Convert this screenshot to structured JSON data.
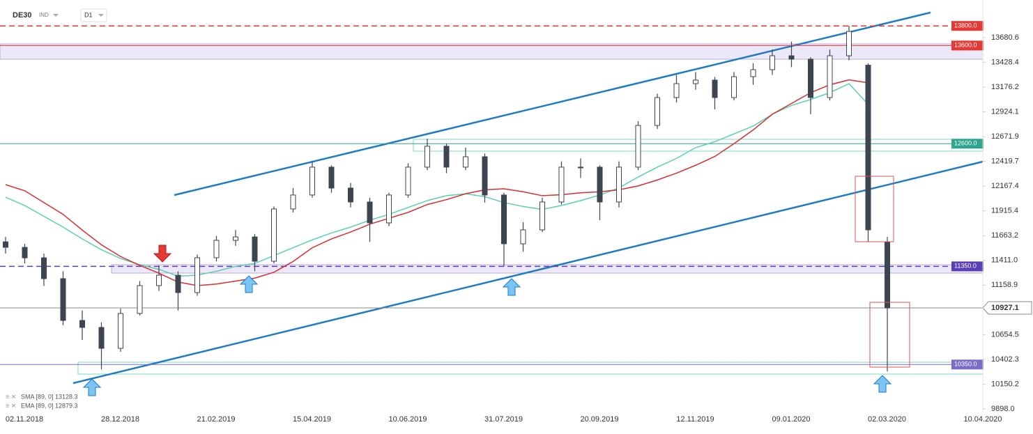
{
  "chart_data": {
    "type": "candlestick",
    "symbol": "DE30",
    "market": "IND",
    "interval": "D1",
    "legend": [
      "SMA [89, 0] 13128.3",
      "EMA [89, 0] 12879.3"
    ],
    "xticks": [
      "02.11.2018",
      "28.12.2018",
      "21.02.2019",
      "15.04.2019",
      "10.06.2019",
      "31.07.2019",
      "20.09.2019",
      "12.11.2019",
      "09.01.2020",
      "02.03.2020",
      "10.04.2020"
    ],
    "ylim": [
      9862,
      14064
    ],
    "yticks": [
      13680.6,
      13428.4,
      13176.2,
      12924.1,
      12671.9,
      12419.7,
      12167.4,
      11915.4,
      11663.2,
      {
        "value": 11411.0,
        "label": "11411.0"
      },
      11158.9,
      10654.5,
      10402.3,
      10150.2,
      {
        "value": 9898.0,
        "label": "9898.0"
      }
    ],
    "open": [
      11600,
      11544,
      11437,
      11225,
      10799,
      10728,
      10515,
      10870,
      11154,
      11260,
      11083,
      11438,
      11615,
      11650,
      11402,
      11935,
      12077,
      12361,
      12148,
      12006,
      11793,
      12077,
      12361,
      12574,
      12361,
      12467,
      12077,
      11580,
      11722,
      12006,
      12361,
      12361,
      12006,
      12361,
      12786,
      13070,
      13212,
      13248,
      13070,
      13283,
      13354,
      13496,
      13461,
      13070,
      13496,
      13400,
      11600
    ],
    "high": [
      11650,
      11580,
      11480,
      11300,
      10900,
      10780,
      10920,
      11200,
      11360,
      11300,
      11470,
      11660,
      11720,
      11680,
      11960,
      12150,
      12420,
      12380,
      12200,
      12050,
      12100,
      12400,
      12650,
      12600,
      12560,
      12500,
      12100,
      11800,
      12050,
      12420,
      12450,
      12380,
      12420,
      12830,
      13110,
      13300,
      13330,
      13280,
      13330,
      13420,
      13560,
      13640,
      13480,
      13560,
      13800,
      13420,
      11650
    ],
    "low": [
      11480,
      11380,
      11150,
      10750,
      10600,
      10300,
      10480,
      10850,
      11100,
      10900,
      11050,
      11400,
      11560,
      11300,
      11380,
      11900,
      12050,
      12100,
      11950,
      11600,
      11760,
      12050,
      12330,
      12300,
      12330,
      12000,
      11350,
      11500,
      11700,
      11980,
      12250,
      11820,
      11950,
      12330,
      12750,
      13020,
      13150,
      12950,
      13040,
      13200,
      13300,
      13380,
      12900,
      13040,
      13450,
      11600,
      10280
    ],
    "close": [
      11544,
      11437,
      11225,
      10799,
      10728,
      10515,
      10870,
      11154,
      11260,
      11083,
      11438,
      11615,
      11650,
      11402,
      11935,
      12077,
      12361,
      12148,
      12006,
      11793,
      12077,
      12361,
      12574,
      12361,
      12467,
      12077,
      11580,
      11722,
      12006,
      12361,
      12361,
      12006,
      12361,
      12786,
      13070,
      13212,
      13248,
      13070,
      13283,
      13354,
      13496,
      13461,
      13070,
      13496,
      13744,
      11722,
      10927
    ],
    "series": [
      {
        "name": "SMA",
        "color": "#5ccfae",
        "values": [
          12055,
          11970,
          11860,
          11750,
          11630,
          11520,
          11430,
          11367,
          11320,
          11250,
          11260,
          11300,
          11350,
          11380,
          11460,
          11540,
          11620,
          11690,
          11750,
          11820,
          11880,
          11950,
          12020,
          12070,
          12090,
          12060,
          12000,
          11960,
          11930,
          11970,
          12020,
          12077,
          12150,
          12260,
          12361,
          12450,
          12560,
          12620,
          12700,
          12780,
          12900,
          12990,
          13050,
          13120,
          13212,
          13000,
          null
        ]
      },
      {
        "name": "EMA",
        "color": "#d32f2f",
        "values": [
          12183,
          12120,
          12000,
          11880,
          11720,
          11570,
          11450,
          11360,
          11280,
          11190,
          11154,
          11170,
          11200,
          11230,
          11290,
          11400,
          11540,
          11630,
          11700,
          11780,
          11840,
          11900,
          11980,
          12030,
          12090,
          12130,
          12140,
          12110,
          12070,
          12080,
          12100,
          12110,
          12130,
          12170,
          12230,
          12300,
          12380,
          12470,
          12600,
          12740,
          12900,
          13010,
          13120,
          13200,
          13250,
          13220,
          null
        ]
      }
    ],
    "levels": [
      {
        "value": 13800,
        "label": "13800.0",
        "color": "#e53935",
        "dashed": true
      },
      {
        "value": 13600,
        "label": "13600.0",
        "color": "#e53935",
        "dashed": false
      },
      {
        "value": 12600,
        "label": "12600.0",
        "color": "#2ca58d",
        "dashed": false
      },
      {
        "value": 11350,
        "label": "11350.0",
        "color": "#5b3fb8",
        "dashed": true
      },
      {
        "value": 10350,
        "label": "10350.0",
        "color": "#7b6cc9",
        "dashed": false
      }
    ],
    "last_price": 10927.1
  }
}
